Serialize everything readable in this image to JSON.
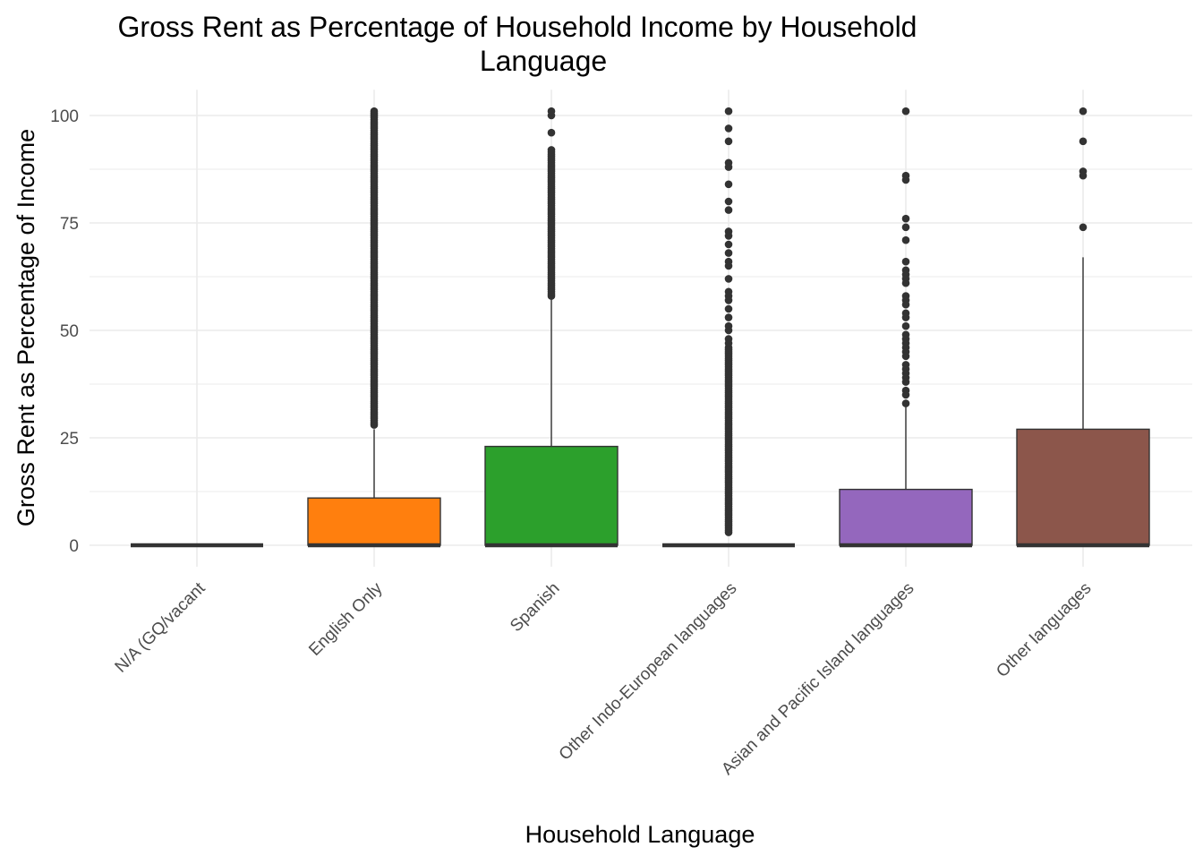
{
  "chart_data": {
    "type": "boxplot",
    "title_lines": [
      "Gross Rent as Percentage of Household Income by Household",
      "Language"
    ],
    "xlabel": "Household Language",
    "ylabel": "Gross Rent as Percentage of Income",
    "ylim": [
      -5,
      106
    ],
    "yticks": [
      0,
      25,
      50,
      75,
      100
    ],
    "grid": true,
    "legend": "none",
    "categories": [
      "N/A (GQ/vacant",
      "English Only",
      "Spanish",
      "Other Indo-European languages",
      "Asian and Pacific Island languages",
      "Other languages"
    ],
    "boxes": [
      {
        "category": "N/A (GQ/vacant",
        "color": "#000000",
        "q1": 0,
        "median": 0,
        "q3": 0,
        "whisker_low": 0,
        "whisker_high": 0,
        "outliers": [],
        "outlier_range": null
      },
      {
        "category": "English Only",
        "color": "#FF7F0E",
        "q1": 0,
        "median": 0,
        "q3": 11,
        "whisker_low": 0,
        "whisker_high": 27,
        "outliers": [],
        "outlier_range": [
          28,
          101
        ]
      },
      {
        "category": "Spanish",
        "color": "#2CA02C",
        "q1": 0,
        "median": 0,
        "q3": 23,
        "whisker_low": 0,
        "whisker_high": 58,
        "outliers": [
          96,
          100,
          101
        ],
        "outlier_range": [
          58,
          92
        ]
      },
      {
        "category": "Other Indo-European languages",
        "color": "#000000",
        "q1": 0,
        "median": 0,
        "q3": 0,
        "whisker_low": 0,
        "whisker_high": 0,
        "outliers": [
          101,
          97,
          94,
          89,
          88,
          84,
          80,
          78,
          73,
          72,
          70,
          68,
          66,
          65,
          62,
          59,
          58,
          57,
          55,
          53,
          51,
          50,
          48,
          47
        ],
        "outlier_range": [
          3,
          46
        ]
      },
      {
        "category": "Asian and Pacific Island languages",
        "color": "#9467BD",
        "q1": 0,
        "median": 0,
        "q3": 13,
        "whisker_low": 0,
        "whisker_high": 33,
        "outliers": [
          101,
          86,
          85,
          76,
          74,
          71,
          66,
          64,
          63,
          62,
          61,
          58,
          57,
          56,
          54,
          53,
          51,
          49,
          48,
          47,
          46,
          45,
          44,
          42,
          41,
          40,
          39,
          38,
          36,
          35,
          33
        ],
        "outlier_range": null
      },
      {
        "category": "Other languages",
        "color": "#8C564B",
        "q1": 0,
        "median": 0,
        "q3": 27,
        "whisker_low": 0,
        "whisker_high": 67,
        "outliers": [
          101,
          94,
          87,
          86,
          74
        ],
        "outlier_range": null
      }
    ]
  }
}
